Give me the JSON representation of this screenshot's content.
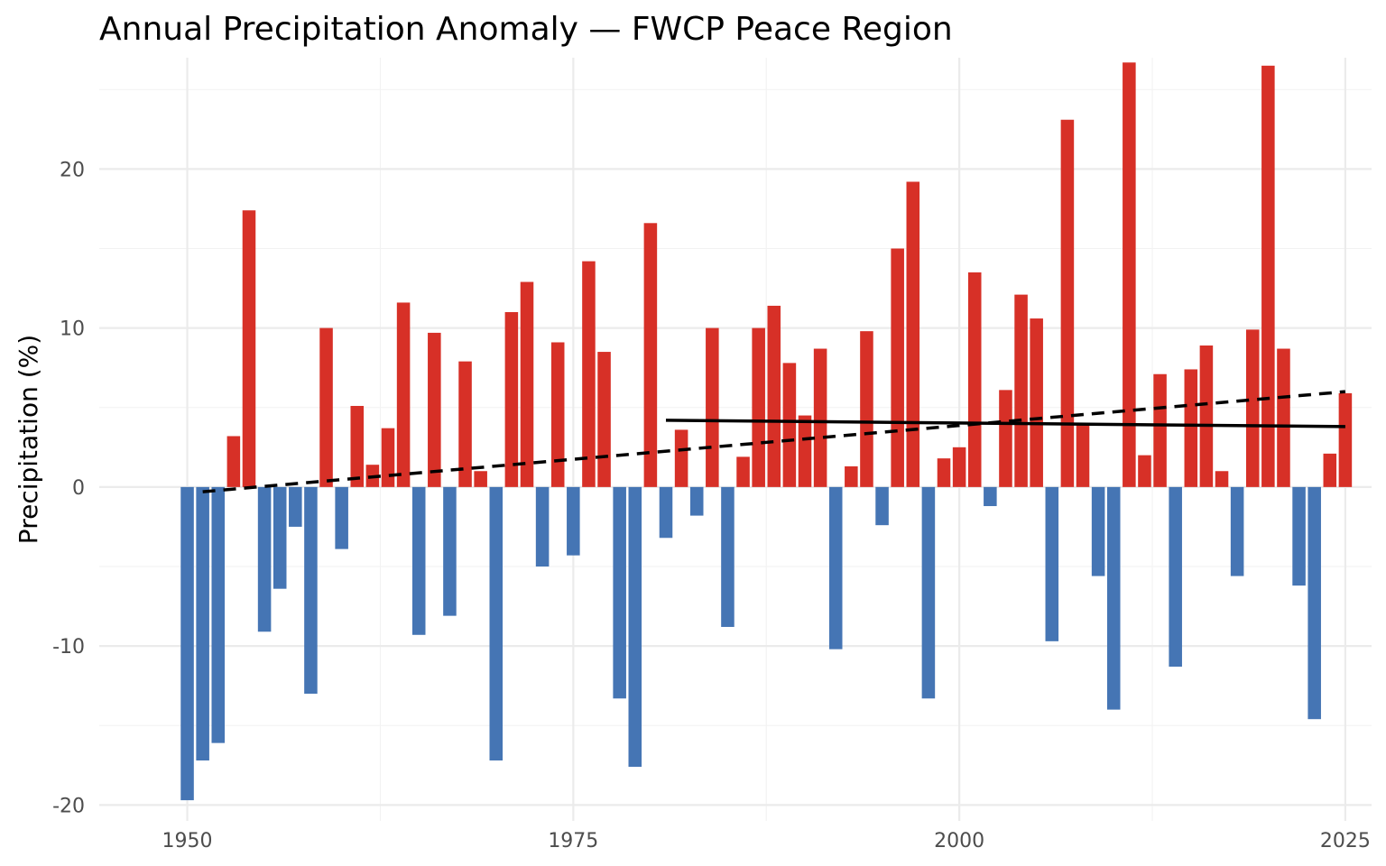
{
  "chart_data": {
    "type": "bar",
    "title": "Annual Precipitation Anomaly — FWCP Peace Region",
    "xlabel": "",
    "ylabel": "Precipitation (%)",
    "x_ticks": [
      1950,
      1975,
      2000,
      2025
    ],
    "y_ticks": [
      -20,
      -10,
      0,
      10,
      20
    ],
    "xlim": [
      1944.3,
      2026.7
    ],
    "ylim": [
      -21.0,
      27.0
    ],
    "grid": true,
    "colors": {
      "positive": "#d73027",
      "negative": "#4575b4",
      "trend": "#000000"
    },
    "years": [
      1950,
      1951,
      1952,
      1953,
      1954,
      1955,
      1956,
      1957,
      1958,
      1959,
      1960,
      1961,
      1962,
      1963,
      1964,
      1965,
      1966,
      1967,
      1968,
      1969,
      1970,
      1971,
      1972,
      1973,
      1974,
      1975,
      1976,
      1977,
      1978,
      1979,
      1980,
      1981,
      1982,
      1983,
      1984,
      1985,
      1986,
      1987,
      1988,
      1989,
      1990,
      1991,
      1992,
      1993,
      1994,
      1995,
      1996,
      1997,
      1998,
      1999,
      2000,
      2001,
      2002,
      2003,
      2004,
      2005,
      2006,
      2007,
      2008,
      2009,
      2010,
      2011,
      2012,
      2013,
      2014,
      2015,
      2016,
      2017,
      2018,
      2019,
      2020,
      2021,
      2022,
      2023,
      2024,
      2025
    ],
    "values": [
      -19.7,
      -17.2,
      -16.1,
      3.2,
      17.4,
      -9.1,
      -6.4,
      -2.5,
      -13.0,
      10.0,
      -3.9,
      5.1,
      1.4,
      3.7,
      11.6,
      -9.3,
      9.7,
      -8.1,
      7.9,
      1.0,
      -17.2,
      11.0,
      12.9,
      -5.0,
      9.1,
      -4.3,
      14.2,
      8.5,
      -13.3,
      -17.6,
      16.6,
      -3.2,
      3.6,
      -1.8,
      10.0,
      -8.8,
      1.9,
      10.0,
      11.4,
      7.8,
      4.5,
      8.7,
      -10.2,
      1.3,
      9.8,
      -2.4,
      15.0,
      19.2,
      -13.3,
      1.8,
      2.5,
      13.5,
      -1.2,
      6.1,
      12.1,
      10.6,
      -9.7,
      23.1,
      4.0,
      -5.6,
      -14.0,
      26.7,
      2.0,
      7.1,
      -11.3,
      7.4,
      8.9,
      1.0,
      -5.6,
      9.9,
      26.5,
      8.7,
      -6.2,
      -14.6,
      2.1,
      5.9
    ],
    "trend_lines": [
      {
        "style": "dashed",
        "x": [
          1951,
          2025
        ],
        "y": [
          -0.3,
          6.0
        ]
      },
      {
        "style": "solid",
        "x": [
          1981,
          2025
        ],
        "y": [
          4.2,
          3.8
        ]
      }
    ]
  }
}
